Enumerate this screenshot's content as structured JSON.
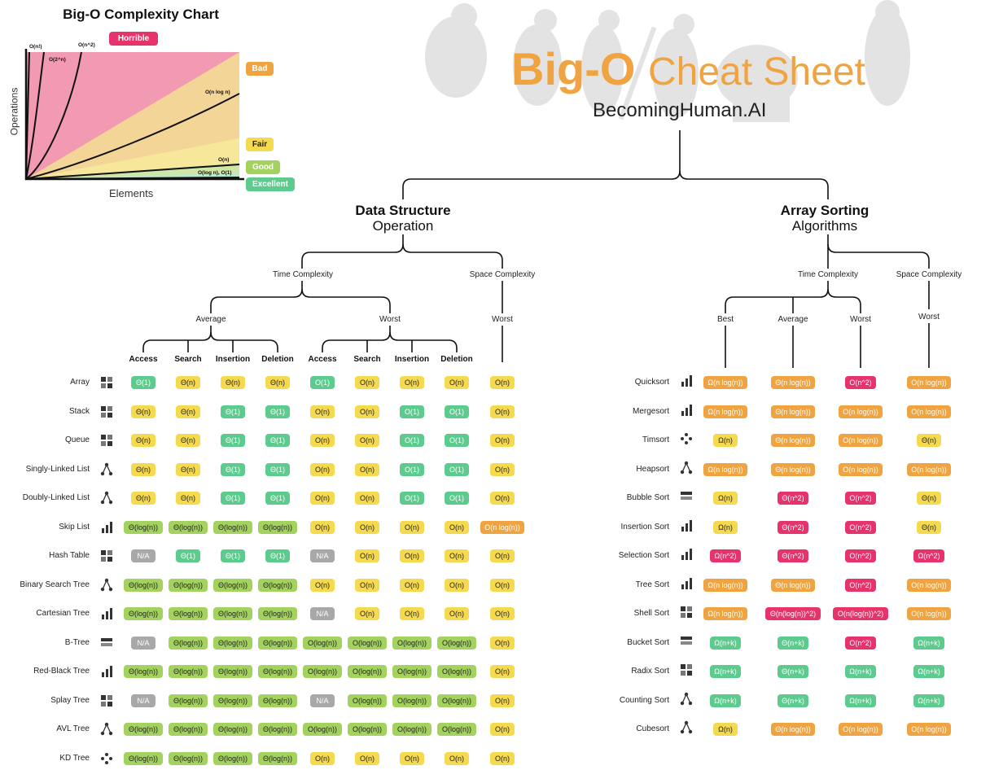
{
  "complexity_chart": {
    "title": "Big-O Complexity Chart",
    "ylabel": "Operations",
    "xlabel": "Elements",
    "ratings": [
      {
        "label": "Horrible",
        "color": "#e6336b"
      },
      {
        "label": "Bad",
        "color": "#f0a441"
      },
      {
        "label": "Fair",
        "color": "#f5d94e"
      },
      {
        "label": "Good",
        "color": "#a3d25e"
      },
      {
        "label": "Excellent",
        "color": "#5dcb8e"
      }
    ],
    "curve_labels": [
      "O(n!)",
      "O(2^n)",
      "O(n^2)",
      "O(n log n)",
      "O(n)",
      "O(log n), O(1)"
    ]
  },
  "header": {
    "title_bold": "Big-O",
    "title_light": "Cheat Sheet",
    "brand": "BecomingHuman.AI"
  },
  "ds": {
    "title": "Data Structure",
    "subtitle": "Operation",
    "time_label": "Time Complexity",
    "space_label": "Space Complexity",
    "average_label": "Average",
    "worst_label": "Worst",
    "space_worst_label": "Worst",
    "columns": [
      "Access",
      "Search",
      "Insertion",
      "Deletion",
      "Access",
      "Search",
      "Insertion",
      "Deletion"
    ],
    "rows": [
      {
        "name": "Array",
        "icon": "array-icon",
        "cells": [
          [
            "Θ(1)",
            "g"
          ],
          [
            "Θ(n)",
            "y"
          ],
          [
            "Θ(n)",
            "y"
          ],
          [
            "Θ(n)",
            "y"
          ],
          [
            "O(1)",
            "g"
          ],
          [
            "O(n)",
            "y"
          ],
          [
            "O(n)",
            "y"
          ],
          [
            "O(n)",
            "y"
          ],
          [
            "O(n)",
            "y"
          ]
        ]
      },
      {
        "name": "Stack",
        "icon": "stack-icon",
        "cells": [
          [
            "Θ(n)",
            "y"
          ],
          [
            "Θ(n)",
            "y"
          ],
          [
            "Θ(1)",
            "g"
          ],
          [
            "Θ(1)",
            "g"
          ],
          [
            "O(n)",
            "y"
          ],
          [
            "O(n)",
            "y"
          ],
          [
            "O(1)",
            "g"
          ],
          [
            "O(1)",
            "g"
          ],
          [
            "O(n)",
            "y"
          ]
        ]
      },
      {
        "name": "Queue",
        "icon": "queue-icon",
        "cells": [
          [
            "Θ(n)",
            "y"
          ],
          [
            "Θ(n)",
            "y"
          ],
          [
            "Θ(1)",
            "g"
          ],
          [
            "Θ(1)",
            "g"
          ],
          [
            "O(n)",
            "y"
          ],
          [
            "O(n)",
            "y"
          ],
          [
            "O(1)",
            "g"
          ],
          [
            "O(1)",
            "g"
          ],
          [
            "O(n)",
            "y"
          ]
        ]
      },
      {
        "name": "Singly-Linked List",
        "icon": "singly-linked-list-icon",
        "cells": [
          [
            "Θ(n)",
            "y"
          ],
          [
            "Θ(n)",
            "y"
          ],
          [
            "Θ(1)",
            "g"
          ],
          [
            "Θ(1)",
            "g"
          ],
          [
            "O(n)",
            "y"
          ],
          [
            "O(n)",
            "y"
          ],
          [
            "O(1)",
            "g"
          ],
          [
            "O(1)",
            "g"
          ],
          [
            "O(n)",
            "y"
          ]
        ]
      },
      {
        "name": "Doubly-Linked List",
        "icon": "doubly-linked-list-icon",
        "cells": [
          [
            "Θ(n)",
            "y"
          ],
          [
            "Θ(n)",
            "y"
          ],
          [
            "Θ(1)",
            "g"
          ],
          [
            "Θ(1)",
            "g"
          ],
          [
            "O(n)",
            "y"
          ],
          [
            "O(n)",
            "y"
          ],
          [
            "O(1)",
            "g"
          ],
          [
            "O(1)",
            "g"
          ],
          [
            "O(n)",
            "y"
          ]
        ]
      },
      {
        "name": "Skip List",
        "icon": "skip-list-icon",
        "cells": [
          [
            "Θ(log(n))",
            "l"
          ],
          [
            "Θ(log(n))",
            "l"
          ],
          [
            "Θ(log(n))",
            "l"
          ],
          [
            "Θ(log(n))",
            "l"
          ],
          [
            "O(n)",
            "y"
          ],
          [
            "O(n)",
            "y"
          ],
          [
            "O(n)",
            "y"
          ],
          [
            "O(n)",
            "y"
          ],
          [
            "O(n log(n))",
            "o"
          ]
        ]
      },
      {
        "name": "Hash Table",
        "icon": "hash-table-icon",
        "cells": [
          [
            "N/A",
            "x"
          ],
          [
            "Θ(1)",
            "g"
          ],
          [
            "Θ(1)",
            "g"
          ],
          [
            "Θ(1)",
            "g"
          ],
          [
            "N/A",
            "x"
          ],
          [
            "O(n)",
            "y"
          ],
          [
            "O(n)",
            "y"
          ],
          [
            "O(n)",
            "y"
          ],
          [
            "O(n)",
            "y"
          ]
        ]
      },
      {
        "name": "Binary Search Tree",
        "icon": "binary-search-tree-icon",
        "cells": [
          [
            "Θ(log(n))",
            "l"
          ],
          [
            "Θ(log(n))",
            "l"
          ],
          [
            "Θ(log(n))",
            "l"
          ],
          [
            "Θ(log(n))",
            "l"
          ],
          [
            "O(n)",
            "y"
          ],
          [
            "O(n)",
            "y"
          ],
          [
            "O(n)",
            "y"
          ],
          [
            "O(n)",
            "y"
          ],
          [
            "O(n)",
            "y"
          ]
        ]
      },
      {
        "name": "Cartesian Tree",
        "icon": "cartesian-tree-icon",
        "cells": [
          [
            "Θ(log(n))",
            "l"
          ],
          [
            "Θ(log(n))",
            "l"
          ],
          [
            "Θ(log(n))",
            "l"
          ],
          [
            "Θ(log(n))",
            "l"
          ],
          [
            "N/A",
            "x"
          ],
          [
            "O(n)",
            "y"
          ],
          [
            "O(n)",
            "y"
          ],
          [
            "O(n)",
            "y"
          ],
          [
            "O(n)",
            "y"
          ]
        ]
      },
      {
        "name": "B-Tree",
        "icon": "b-tree-icon",
        "cells": [
          [
            "N/A",
            "x"
          ],
          [
            "Θ(log(n))",
            "l"
          ],
          [
            "Θ(log(n))",
            "l"
          ],
          [
            "Θ(log(n))",
            "l"
          ],
          [
            "O(log(n))",
            "l"
          ],
          [
            "O(log(n))",
            "l"
          ],
          [
            "O(log(n))",
            "l"
          ],
          [
            "O(log(n))",
            "l"
          ],
          [
            "O(n)",
            "y"
          ]
        ]
      },
      {
        "name": "Red-Black Tree",
        "icon": "red-black-tree-icon",
        "cells": [
          [
            "Θ(log(n))",
            "l"
          ],
          [
            "Θ(log(n))",
            "l"
          ],
          [
            "Θ(log(n))",
            "l"
          ],
          [
            "Θ(log(n))",
            "l"
          ],
          [
            "O(log(n))",
            "l"
          ],
          [
            "O(log(n))",
            "l"
          ],
          [
            "O(log(n))",
            "l"
          ],
          [
            "O(log(n))",
            "l"
          ],
          [
            "O(n)",
            "y"
          ]
        ]
      },
      {
        "name": "Splay Tree",
        "icon": "splay-tree-icon",
        "cells": [
          [
            "N/A",
            "x"
          ],
          [
            "Θ(log(n))",
            "l"
          ],
          [
            "Θ(log(n))",
            "l"
          ],
          [
            "Θ(log(n))",
            "l"
          ],
          [
            "N/A",
            "x"
          ],
          [
            "O(log(n))",
            "l"
          ],
          [
            "O(log(n))",
            "l"
          ],
          [
            "O(log(n))",
            "l"
          ],
          [
            "O(n)",
            "y"
          ]
        ]
      },
      {
        "name": "AVL Tree",
        "icon": "avl-tree-icon",
        "cells": [
          [
            "Θ(log(n))",
            "l"
          ],
          [
            "Θ(log(n))",
            "l"
          ],
          [
            "Θ(log(n))",
            "l"
          ],
          [
            "Θ(log(n))",
            "l"
          ],
          [
            "O(log(n))",
            "l"
          ],
          [
            "O(log(n))",
            "l"
          ],
          [
            "O(log(n))",
            "l"
          ],
          [
            "O(log(n))",
            "l"
          ],
          [
            "O(n)",
            "y"
          ]
        ]
      },
      {
        "name": "KD Tree",
        "icon": "kd-tree-icon",
        "cells": [
          [
            "Θ(log(n))",
            "l"
          ],
          [
            "Θ(log(n))",
            "l"
          ],
          [
            "Θ(log(n))",
            "l"
          ],
          [
            "Θ(log(n))",
            "l"
          ],
          [
            "O(n)",
            "y"
          ],
          [
            "O(n)",
            "y"
          ],
          [
            "O(n)",
            "y"
          ],
          [
            "O(n)",
            "y"
          ],
          [
            "O(n)",
            "y"
          ]
        ]
      }
    ]
  },
  "sort": {
    "title": "Array Sorting",
    "subtitle": "Algorithms",
    "time_label": "Time Complexity",
    "space_label": "Space Complexity",
    "best_label": "Best",
    "average_label": "Average",
    "worst_label": "Worst",
    "space_worst_label": "Worst",
    "rows": [
      {
        "name": "Quicksort",
        "icon": "quicksort-icon",
        "cells": [
          [
            "Ω(n log(n))",
            "o"
          ],
          [
            "Θ(n log(n))",
            "o"
          ],
          [
            "O(n^2)",
            "r"
          ],
          [
            "O(n log(n))",
            "o"
          ]
        ]
      },
      {
        "name": "Mergesort",
        "icon": "mergesort-icon",
        "cells": [
          [
            "Ω(n log(n))",
            "o"
          ],
          [
            "Θ(n log(n))",
            "o"
          ],
          [
            "O(n log(n))",
            "o"
          ],
          [
            "O(n log(n))",
            "o"
          ]
        ]
      },
      {
        "name": "Timsort",
        "icon": "timsort-icon",
        "cells": [
          [
            "Ω(n)",
            "y"
          ],
          [
            "Θ(n log(n))",
            "o"
          ],
          [
            "O(n log(n))",
            "o"
          ],
          [
            "Θ(n)",
            "y"
          ]
        ]
      },
      {
        "name": "Heapsort",
        "icon": "heapsort-icon",
        "cells": [
          [
            "Ω(n log(n))",
            "o"
          ],
          [
            "Θ(n log(n))",
            "o"
          ],
          [
            "O(n log(n))",
            "o"
          ],
          [
            "O(n log(n))",
            "o"
          ]
        ]
      },
      {
        "name": "Bubble Sort",
        "icon": "bubble-sort-icon",
        "cells": [
          [
            "Ω(n)",
            "y"
          ],
          [
            "Θ(n^2)",
            "r"
          ],
          [
            "O(n^2)",
            "r"
          ],
          [
            "Θ(n)",
            "y"
          ]
        ]
      },
      {
        "name": "Insertion Sort",
        "icon": "insertion-sort-icon",
        "cells": [
          [
            "Ω(n)",
            "y"
          ],
          [
            "Θ(n^2)",
            "r"
          ],
          [
            "O(n^2)",
            "r"
          ],
          [
            "Θ(n)",
            "y"
          ]
        ]
      },
      {
        "name": "Selection Sort",
        "icon": "selection-sort-icon",
        "cells": [
          [
            "Ω(n^2)",
            "r"
          ],
          [
            "Θ(n^2)",
            "r"
          ],
          [
            "O(n^2)",
            "r"
          ],
          [
            "Ω(n^2)",
            "r"
          ]
        ]
      },
      {
        "name": "Tree Sort",
        "icon": "tree-sort-icon",
        "cells": [
          [
            "Ω(n log(n))",
            "o"
          ],
          [
            "Θ(n log(n))",
            "o"
          ],
          [
            "O(n^2)",
            "r"
          ],
          [
            "O(n log(n))",
            "o"
          ]
        ]
      },
      {
        "name": "Shell Sort",
        "icon": "shell-sort-icon",
        "cells": [
          [
            "Ω(n log(n))",
            "o"
          ],
          [
            "Θ(n(log(n))^2)",
            "r"
          ],
          [
            "O(n(log(n))^2)",
            "r"
          ],
          [
            "O(n log(n))",
            "o"
          ]
        ]
      },
      {
        "name": "Bucket Sort",
        "icon": "bucket-sort-icon",
        "cells": [
          [
            "Ω(n+k)",
            "g"
          ],
          [
            "Θ(n+k)",
            "g"
          ],
          [
            "O(n^2)",
            "r"
          ],
          [
            "Ω(n+k)",
            "g"
          ]
        ]
      },
      {
        "name": "Radix Sort",
        "icon": "radix-sort-icon",
        "cells": [
          [
            "Ω(n+k)",
            "g"
          ],
          [
            "Θ(n+k)",
            "g"
          ],
          [
            "Ω(n+k)",
            "g"
          ],
          [
            "Ω(n+k)",
            "g"
          ]
        ]
      },
      {
        "name": "Counting Sort",
        "icon": "counting-sort-icon",
        "cells": [
          [
            "Ω(n+k)",
            "g"
          ],
          [
            "Θ(n+k)",
            "g"
          ],
          [
            "Ω(n+k)",
            "g"
          ],
          [
            "Ω(n+k)",
            "g"
          ]
        ]
      },
      {
        "name": "Cubesort",
        "icon": "cubesort-icon",
        "cells": [
          [
            "Ω(n)",
            "y"
          ],
          [
            "Θ(n log(n))",
            "o"
          ],
          [
            "O(n log(n))",
            "o"
          ],
          [
            "O(n log(n))",
            "o"
          ]
        ]
      }
    ]
  }
}
